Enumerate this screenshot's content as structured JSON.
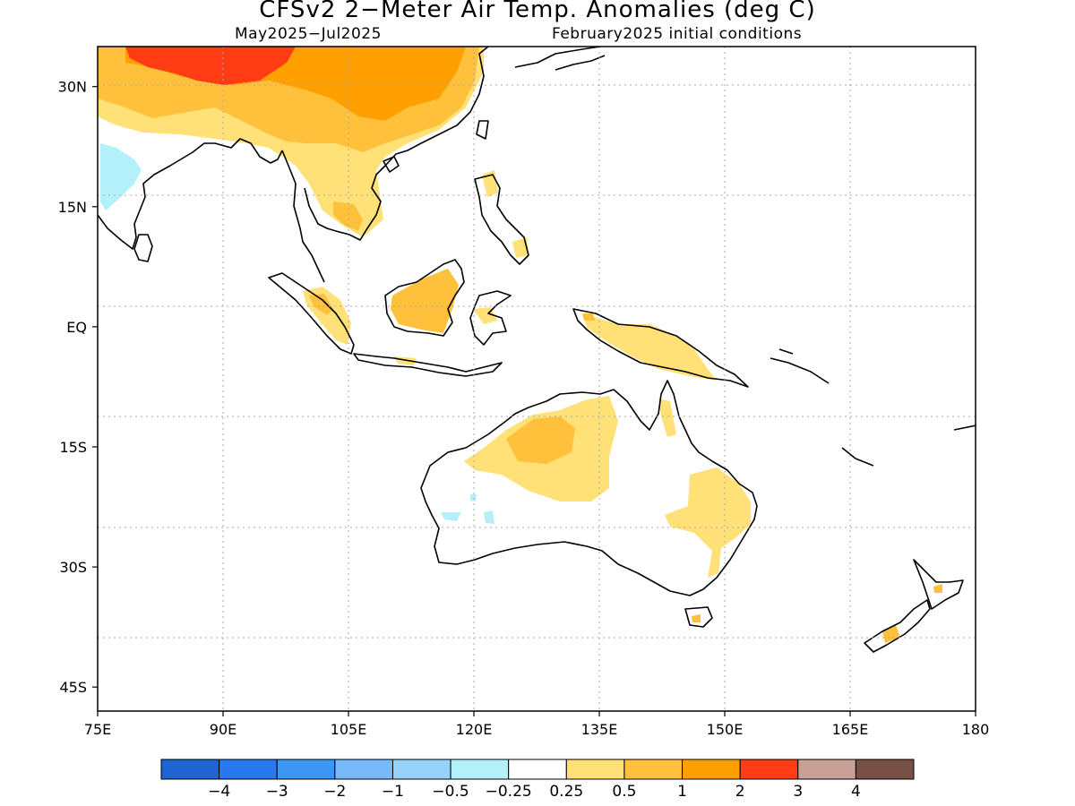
{
  "header": {
    "title": "CFSv2 2−Meter Air Temp. Anomalies (deg C)",
    "period": "May2025−Jul2025",
    "init": "February2025 initial conditions"
  },
  "map": {
    "lon_range": [
      75,
      180
    ],
    "lat_range": [
      -48,
      35
    ],
    "lat_ticks": [
      {
        "value": 30,
        "label": "30N"
      },
      {
        "value": 15,
        "label": "15N"
      },
      {
        "value": 0,
        "label": "EQ"
      },
      {
        "value": -15,
        "label": "15S"
      },
      {
        "value": -30,
        "label": "30S"
      },
      {
        "value": -45,
        "label": "45S"
      }
    ],
    "lon_ticks": [
      {
        "value": 75,
        "label": "75E"
      },
      {
        "value": 90,
        "label": "90E"
      },
      {
        "value": 105,
        "label": "105E"
      },
      {
        "value": 120,
        "label": "120E"
      },
      {
        "value": 135,
        "label": "135E"
      },
      {
        "value": 150,
        "label": "150E"
      },
      {
        "value": 165,
        "label": "165E"
      },
      {
        "value": 180,
        "label": "180"
      }
    ],
    "grid": true
  },
  "colorbar": {
    "colors": [
      "#1e64d2",
      "#2878f0",
      "#3c96f5",
      "#78b9fa",
      "#96d2fa",
      "#b4f0fa",
      "#ffffff",
      "#ffe178",
      "#ffc03c",
      "#ffa000",
      "#ff3c14",
      "#c8a096",
      "#785046"
    ],
    "labels": [
      "−4",
      "−3",
      "−2",
      "−1",
      "−0.5",
      "−0.25",
      "0.25",
      "0.5",
      "1",
      "2",
      "3",
      "4"
    ]
  },
  "anomaly_regions": [
    {
      "region": "Tibetan Plateau / NW China",
      "level": "2 to 3",
      "color": "#ff3c14"
    },
    {
      "region": "China / Central Asia",
      "level": "1 to 2",
      "color": "#ffa000"
    },
    {
      "region": "Northern India / Himalaya foothills",
      "level": "0.5 to 1",
      "color": "#ffc03c"
    },
    {
      "region": "Indochina",
      "level": "0.25 to 1",
      "color": "#ffe178"
    },
    {
      "region": "Borneo",
      "level": "0.5 to 1",
      "color": "#ffc03c"
    },
    {
      "region": "Northwest Australia",
      "level": "0.5 to 1",
      "color": "#ffc03c"
    },
    {
      "region": "Eastern Australia",
      "level": "0.25 to 0.5",
      "color": "#ffe178"
    },
    {
      "region": "New Guinea",
      "level": "0.25 to 0.5",
      "color": "#ffe178"
    },
    {
      "region": "Western India",
      "level": "-0.5 to -0.25",
      "color": "#b4f0fa"
    },
    {
      "region": "Western Australia interior",
      "level": "-0.5 to -0.25",
      "color": "#b4f0fa"
    }
  ]
}
